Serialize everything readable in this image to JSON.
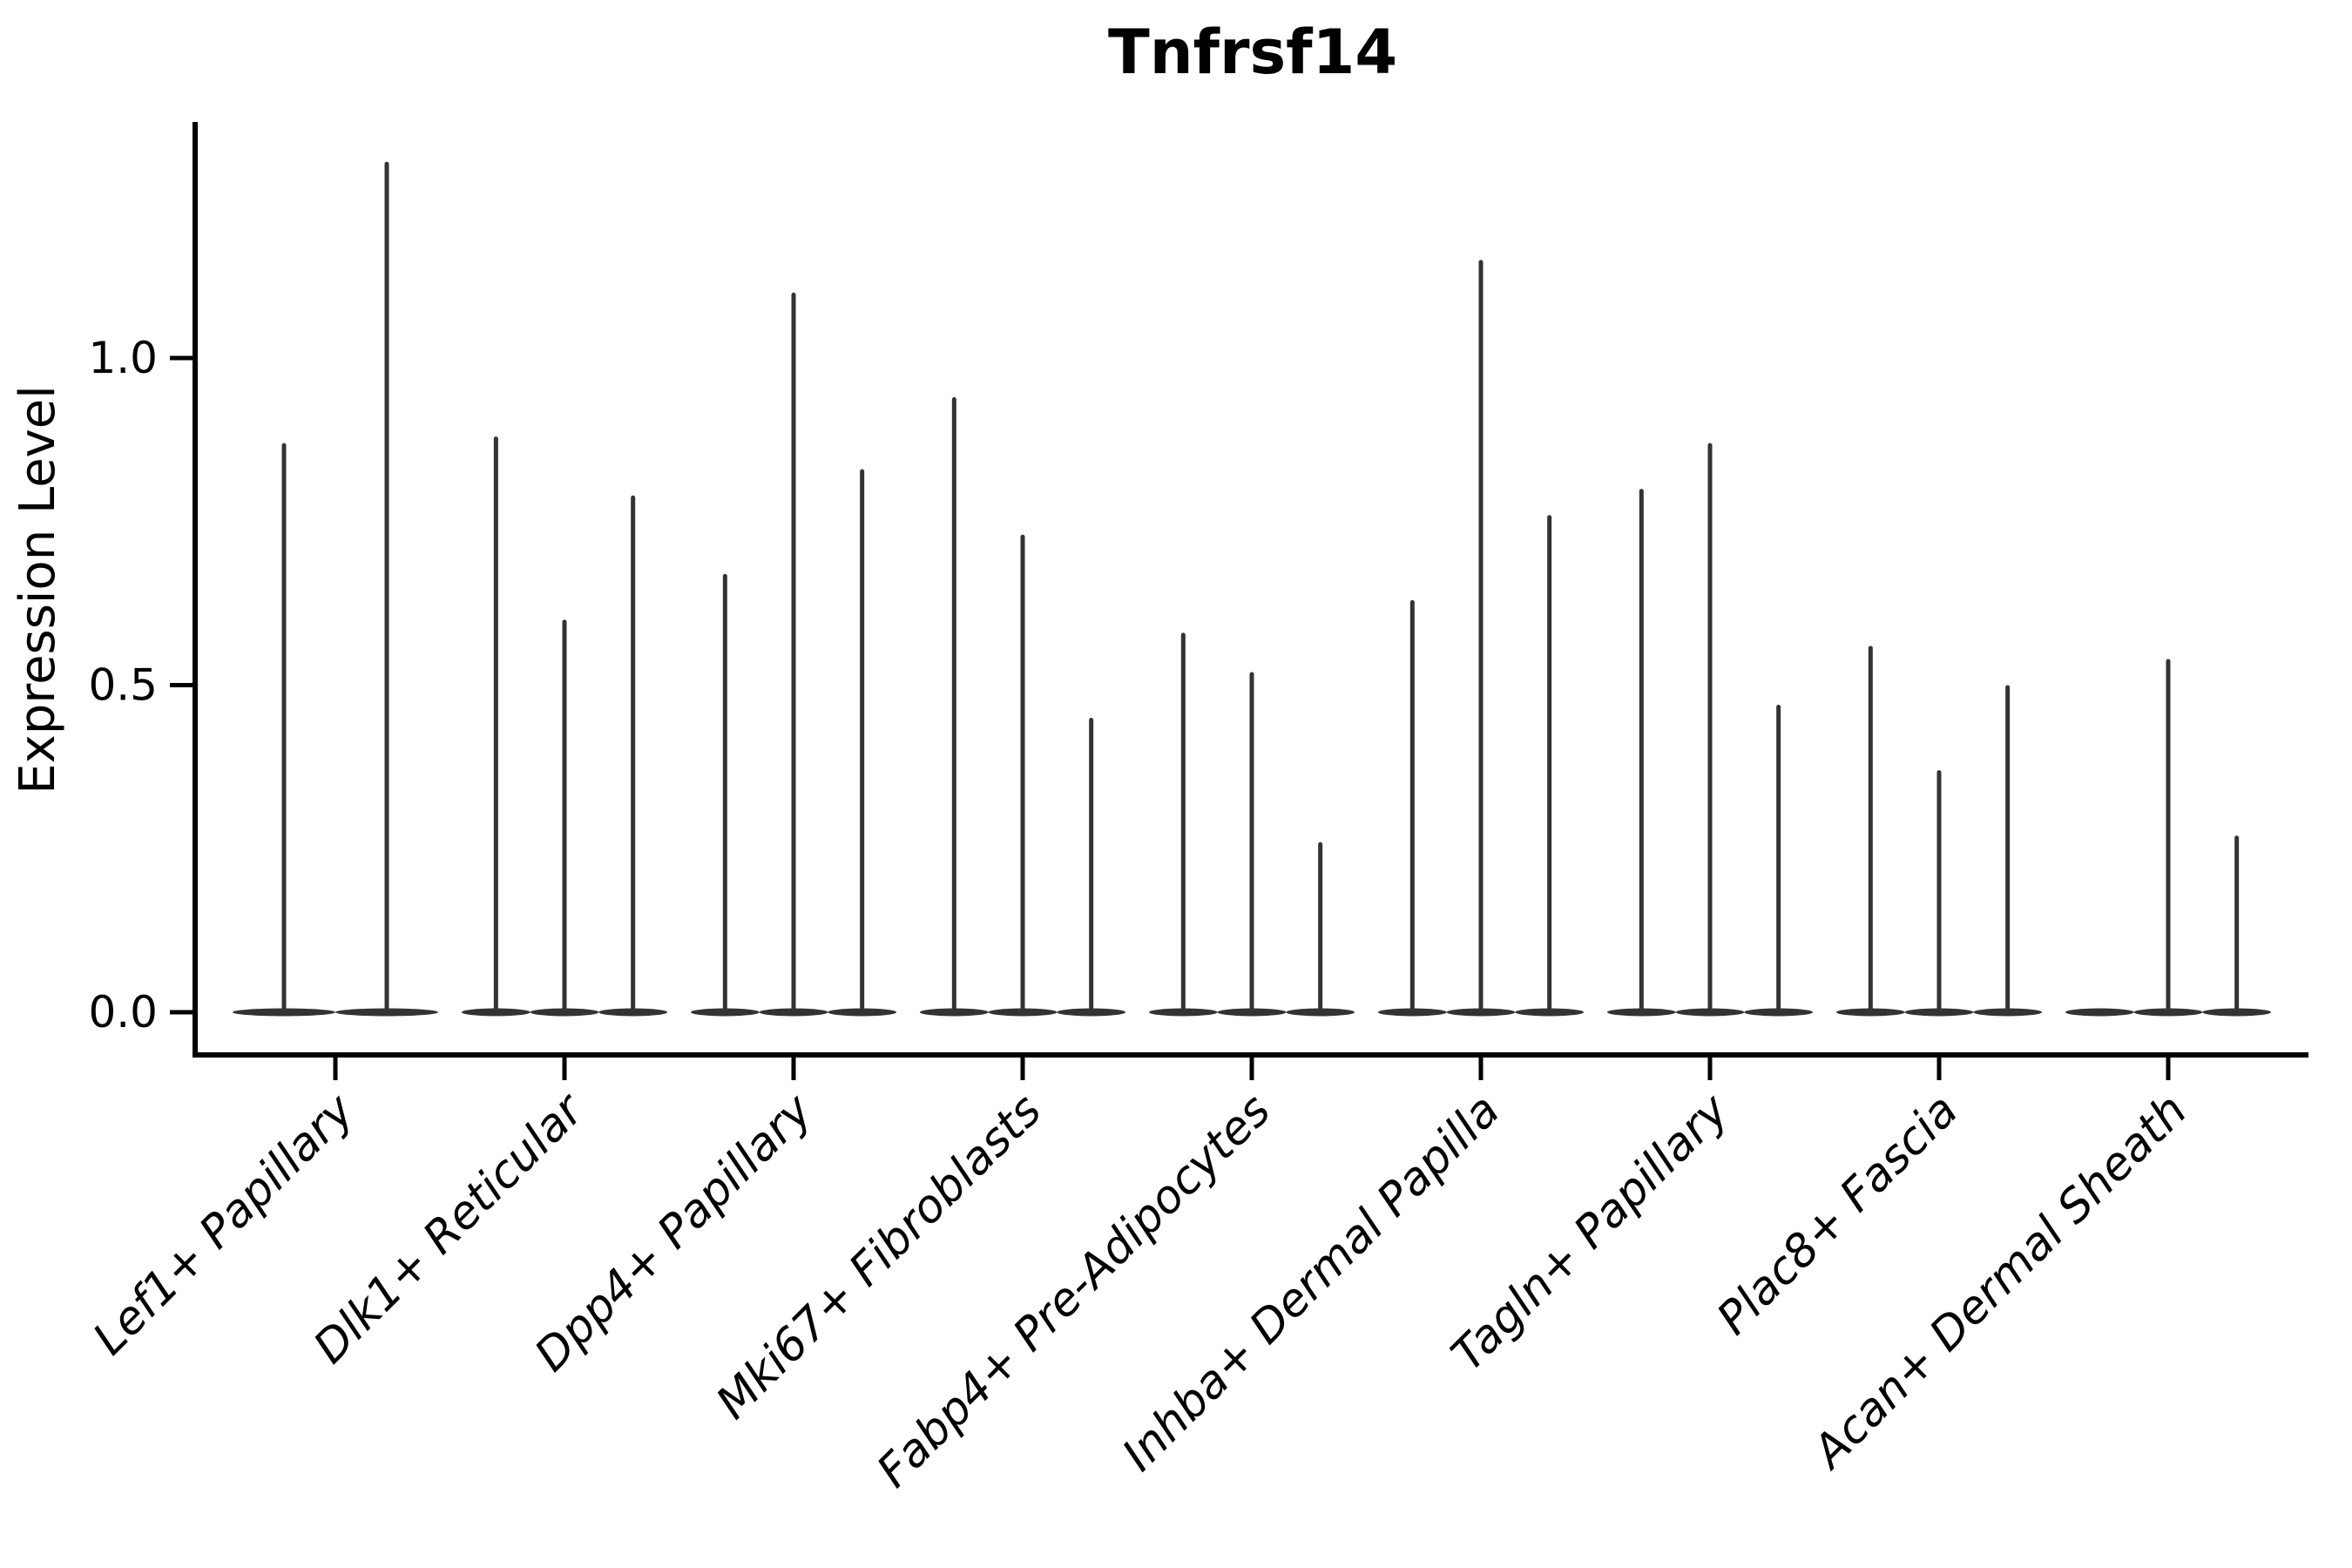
{
  "figure": {
    "background_color": "#ffffff"
  },
  "chart_data": {
    "type": "violin",
    "title": "Tnfrsf14",
    "ylabel": "Expression Level",
    "xlabel": "",
    "grid": false,
    "legend": "none",
    "ylim": [
      -0.06,
      1.36
    ],
    "yticks": [
      {
        "value": 0.0,
        "label": "0.0"
      },
      {
        "value": 0.5,
        "label": "0.5"
      },
      {
        "value": 1.0,
        "label": "1.0"
      }
    ],
    "colors": {
      "violin": "#333333",
      "axis": "#000000",
      "text": "#000000"
    },
    "categories": [
      "Lef1+ Papillary",
      "Dlk1+ Reticular",
      "Dpp4+ Papillary",
      "Mki67+ Fibroblasts",
      "Fabp4+ Pre-Adipocytes",
      "Inhba+ Dermal Papilla",
      "Tagln+ Papillary",
      "Plac8+ Fascia",
      "Acan+ Dermal Sheath"
    ],
    "series": [
      {
        "category": "Lef1+ Papillary",
        "violin_max_expression": [
          0.87,
          1.3
        ]
      },
      {
        "category": "Dlk1+ Reticular",
        "violin_max_expression": [
          0.88,
          0.6,
          0.79
        ]
      },
      {
        "category": "Dpp4+ Papillary",
        "violin_max_expression": [
          0.67,
          1.1,
          0.83
        ]
      },
      {
        "category": "Mki67+ Fibroblasts",
        "violin_max_expression": [
          0.94,
          0.73,
          0.45
        ]
      },
      {
        "category": "Fabp4+ Pre-Adipocytes",
        "violin_max_expression": [
          0.58,
          0.52,
          0.26
        ]
      },
      {
        "category": "Inhba+ Dermal Papilla",
        "violin_max_expression": [
          0.63,
          1.15,
          0.76
        ]
      },
      {
        "category": "Tagln+ Papillary",
        "violin_max_expression": [
          0.8,
          0.87,
          0.47
        ]
      },
      {
        "category": "Plac8+ Fascia",
        "violin_max_expression": [
          0.56,
          0.37,
          0.5
        ]
      },
      {
        "category": "Acan+ Dermal Sheath",
        "violin_max_expression": [
          0.0,
          0.54,
          0.27
        ]
      }
    ]
  }
}
